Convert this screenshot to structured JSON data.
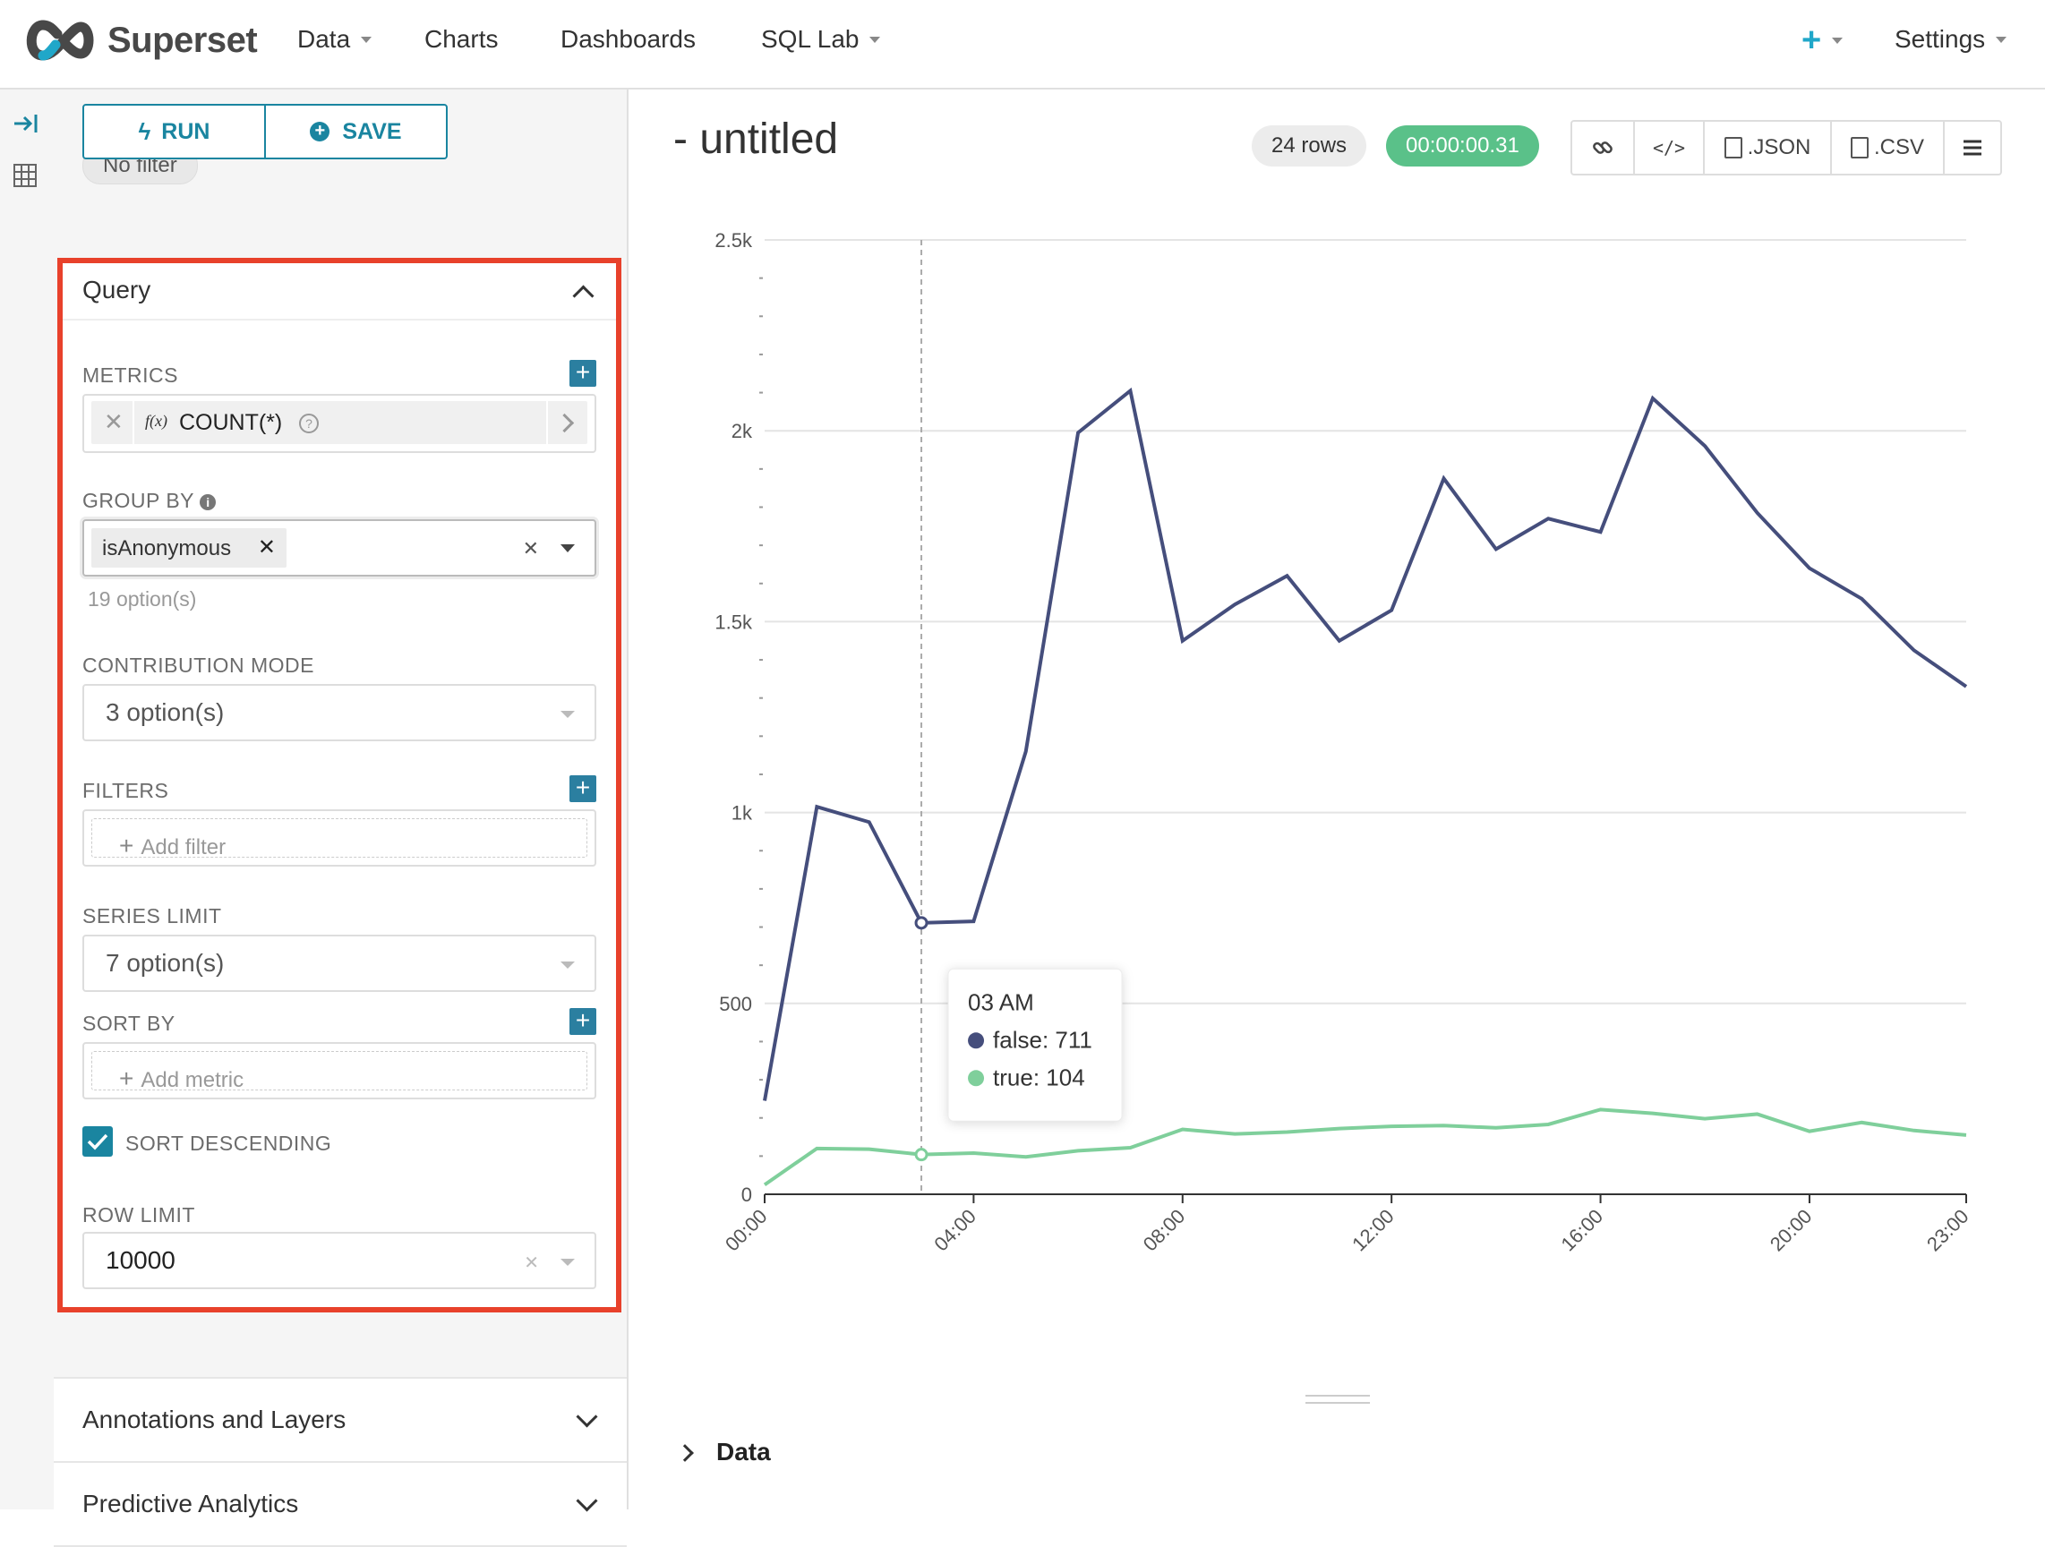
{
  "navbar": {
    "brand": "Superset",
    "items": [
      {
        "label": "Data",
        "dropdown": true
      },
      {
        "label": "Charts",
        "dropdown": false
      },
      {
        "label": "Dashboards",
        "dropdown": false
      },
      {
        "label": "SQL Lab",
        "dropdown": true
      }
    ],
    "add_icon": "plus-icon",
    "settings": "Settings"
  },
  "sidebar": {
    "run_label": "RUN",
    "save_label": "SAVE",
    "no_filter": "No filter",
    "query": {
      "header": "Query",
      "metrics_label": "METRICS",
      "metric_value": "COUNT(*)",
      "metric_fx": "f(x)",
      "group_by_label": "GROUP BY",
      "group_by_tag": "isAnonymous",
      "group_by_options": "19 option(s)",
      "contribution_label": "CONTRIBUTION MODE",
      "contribution_value": "3 option(s)",
      "filters_label": "FILTERS",
      "add_filter": "Add filter",
      "series_limit_label": "SERIES LIMIT",
      "series_limit_value": "7 option(s)",
      "sort_by_label": "SORT BY",
      "add_metric": "Add metric",
      "sort_desc_label": "SORT DESCENDING",
      "sort_desc_checked": true,
      "row_limit_label": "ROW LIMIT",
      "row_limit_value": "10000"
    },
    "accordions": [
      "Annotations and Layers",
      "Predictive Analytics"
    ]
  },
  "main": {
    "title": "- untitled",
    "rows_badge": "24 rows",
    "time_badge": "00:00:00.31",
    "toolbar": {
      "json": ".JSON",
      "csv": ".CSV"
    },
    "data_section": "Data"
  },
  "colors": {
    "accent": "#1a85a0",
    "series_false": "#454e7c",
    "series_true": "#7fcf9b",
    "highlight": "#e8412b",
    "time_badge": "#5ac189"
  },
  "tooltip": {
    "title": "03 AM",
    "lines": [
      "false: 711",
      "true: 104"
    ]
  },
  "chart_data": {
    "type": "line",
    "x": [
      "00:00",
      "01:00",
      "02:00",
      "03:00",
      "04:00",
      "05:00",
      "06:00",
      "07:00",
      "08:00",
      "09:00",
      "10:00",
      "11:00",
      "12:00",
      "13:00",
      "14:00",
      "15:00",
      "16:00",
      "17:00",
      "18:00",
      "19:00",
      "20:00",
      "21:00",
      "22:00",
      "23:00"
    ],
    "xticks": [
      "00:00",
      "04:00",
      "08:00",
      "12:00",
      "16:00",
      "20:00",
      "23:00"
    ],
    "yticks": [
      "0",
      "500",
      "1k",
      "1.5k",
      "2k",
      "2.5k"
    ],
    "ylim": [
      0,
      2500
    ],
    "series": [
      {
        "name": "false",
        "color": "#454e7c",
        "values": [
          245,
          1015,
          975,
          711,
          715,
          1160,
          1995,
          2105,
          1450,
          1545,
          1620,
          1450,
          1530,
          1875,
          1690,
          1770,
          1735,
          2085,
          1960,
          1785,
          1640,
          1560,
          1425,
          1330
        ]
      },
      {
        "name": "true",
        "color": "#7fcf9b",
        "values": [
          25,
          120,
          118,
          104,
          108,
          98,
          114,
          122,
          170,
          158,
          163,
          172,
          178,
          180,
          174,
          183,
          222,
          212,
          198,
          210,
          165,
          188,
          167,
          155
        ]
      }
    ],
    "highlight_index": 3,
    "grid": true,
    "legend": "none"
  }
}
